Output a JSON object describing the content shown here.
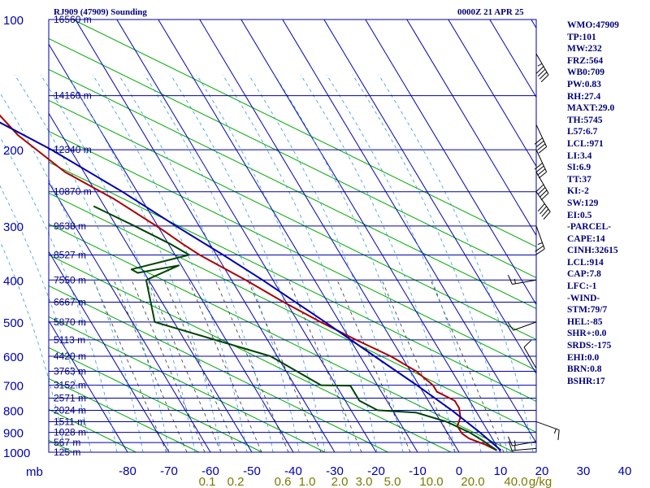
{
  "header": {
    "station": "RJ909 (47909) Sounding",
    "time": "0000Z 21 APR 25"
  },
  "stats": [
    "WMO:47909",
    "TP:101",
    "MW:232",
    "FRZ:564",
    "WB0:709",
    "PW:0.83",
    "RH:27.4",
    "MAXT:29.0",
    "TH:5745",
    "L57:6.7",
    "LCL:971",
    "LI:3.4",
    "SI:6.9",
    "TT:37",
    "KI:-2",
    "SW:129",
    "EI:0.5",
    "-PARCEL-",
    "CAPE:14",
    "CINH:32615",
    "LCL:914",
    "CAP:7.8",
    "LFC:-1",
    "-WIND-",
    "STM:79/7",
    "HEL:-85",
    "SHR+:0.0",
    "SRDS:-175",
    "EHI:0.0",
    "BRN:0.8",
    "BSHR:17"
  ],
  "chart_data": {
    "type": "skew-t",
    "ylabel": "mb",
    "pressure_ticks": [
      {
        "p": 100,
        "label": "100"
      },
      {
        "p": 200,
        "label": "200"
      },
      {
        "p": 300,
        "label": "300"
      },
      {
        "p": 400,
        "label": "400"
      },
      {
        "p": 500,
        "label": "500"
      },
      {
        "p": 600,
        "label": "600"
      },
      {
        "p": 700,
        "label": "700"
      },
      {
        "p": 800,
        "label": "800"
      },
      {
        "p": 900,
        "label": "900"
      },
      {
        "p": 1000,
        "label": "1000"
      }
    ],
    "temperature_ticks": [
      -80,
      -70,
      -60,
      -50,
      -40,
      -30,
      -20,
      -10,
      0,
      10,
      20,
      30,
      40
    ],
    "temperature_tick_labels": [
      "-80",
      "-70",
      "-60",
      "-50",
      "-40",
      "-30",
      "-20",
      "-10",
      "0",
      "10",
      "20",
      "30",
      "40"
    ],
    "mixing_ratio_labels": [
      "0.1",
      "0.2",
      "0.6",
      "1.0",
      "2.0",
      "3.0",
      "5.0",
      "10.0",
      "20.0",
      "40.0",
      "g/kg"
    ],
    "height_labels": [
      {
        "p": 100,
        "label": "16560 m"
      },
      {
        "p": 150,
        "label": "14160 m"
      },
      {
        "p": 200,
        "label": "12340 m"
      },
      {
        "p": 250,
        "label": "10870 m"
      },
      {
        "p": 300,
        "label": "9638 m"
      },
      {
        "p": 350,
        "label": "8527 m"
      },
      {
        "p": 400,
        "label": "7550 m"
      },
      {
        "p": 450,
        "label": "6667 m"
      },
      {
        "p": 500,
        "label": "5870 m"
      },
      {
        "p": 550,
        "label": "5113 m"
      },
      {
        "p": 600,
        "label": "4420 m"
      },
      {
        "p": 650,
        "label": "3763 m"
      },
      {
        "p": 700,
        "label": "3152 m"
      },
      {
        "p": 750,
        "label": "2571 m"
      },
      {
        "p": 800,
        "label": "2024 m"
      },
      {
        "p": 850,
        "label": "1511 m"
      },
      {
        "p": 900,
        "label": "1028 m"
      },
      {
        "p": 950,
        "label": "567 m"
      },
      {
        "p": 1000,
        "label": "125 m"
      }
    ],
    "series": [
      {
        "color": "#aa0000",
        "points": [
          [
            100,
            -75.6
          ],
          [
            150,
            -63.6
          ],
          [
            185,
            -60.6
          ],
          [
            225,
            -54.6
          ],
          [
            260,
            -46.6
          ],
          [
            305,
            -39.6
          ],
          [
            330,
            -36.6
          ],
          [
            350,
            -34.1
          ],
          [
            400,
            -26.6
          ],
          [
            450,
            -20.6
          ],
          [
            500,
            -14.6
          ],
          [
            550,
            -8.6
          ],
          [
            600,
            -2.6
          ],
          [
            650,
            1.4
          ],
          [
            700,
            3.4
          ],
          [
            725,
            3.4
          ],
          [
            760,
            6.4
          ],
          [
            790,
            6.4
          ],
          [
            830,
            5.4
          ],
          [
            870,
            3.4
          ],
          [
            905,
            3.4
          ],
          [
            930,
            4.4
          ],
          [
            960,
            7.4
          ],
          [
            990,
            9.4
          ]
        ]
      },
      {
        "color": "#004400",
        "points": [
          [
            270,
            -52.6
          ],
          [
            300,
            -45.6
          ],
          [
            330,
            -39.6
          ],
          [
            350,
            -36.6
          ],
          [
            378,
            -52.6
          ],
          [
            385,
            -51.6
          ],
          [
            370,
            -40.6
          ],
          [
            400,
            -50.6
          ],
          [
            500,
            -54.6
          ],
          [
            600,
            -31.6
          ],
          [
            700,
            -23.6
          ],
          [
            702,
            -16.6
          ],
          [
            760,
            -16.6
          ],
          [
            800,
            -13.6
          ],
          [
            810,
            -4.6
          ],
          [
            850,
            1.4
          ],
          [
            900,
            5.4
          ],
          [
            940,
            7.4
          ],
          [
            965,
            8.4
          ],
          [
            990,
            9.4
          ]
        ]
      },
      {
        "color": "#0000aa",
        "points": [
          [
            130,
            -80.2
          ],
          [
            150,
            -71.5
          ],
          [
            200,
            -54.6
          ],
          [
            250,
            -43.6
          ],
          [
            300,
            -35.6
          ],
          [
            350,
            -28.4
          ],
          [
            400,
            -22.5
          ],
          [
            500,
            -13.5
          ],
          [
            600,
            -6.5
          ],
          [
            700,
            -0.5
          ],
          [
            800,
            4.3
          ],
          [
            900,
            7.9
          ],
          [
            990,
            10.4
          ]
        ]
      }
    ],
    "wind_barbs": [
      {
        "p": 120,
        "dir": 30,
        "speed": 45
      },
      {
        "p": 175,
        "dir": 25,
        "speed": 40
      },
      {
        "p": 200,
        "dir": 25,
        "speed": 40
      },
      {
        "p": 225,
        "dir": 30,
        "speed": 40
      },
      {
        "p": 250,
        "dir": 35,
        "speed": 40
      },
      {
        "p": 300,
        "dir": 20,
        "speed": 25
      },
      {
        "p": 400,
        "dir": 280,
        "speed": 15
      },
      {
        "p": 500,
        "dir": 290,
        "speed": 10
      },
      {
        "p": 640,
        "dir": 210,
        "speed": 10
      },
      {
        "p": 850,
        "dir": 70,
        "speed": 15
      },
      {
        "p": 945,
        "dir": 280,
        "speed": 15
      },
      {
        "p": 980,
        "dir": 275,
        "speed": 15
      }
    ]
  }
}
